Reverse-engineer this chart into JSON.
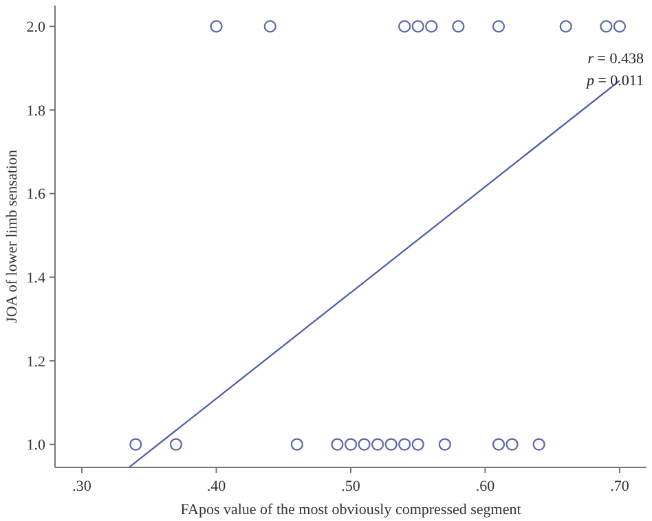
{
  "chart_data": {
    "type": "scatter",
    "xlabel": "FApos value of the most obviously compressed segment",
    "ylabel": "JOA of lower limb sensation",
    "xlim": [
      0.28,
      0.72
    ],
    "ylim": [
      0.945,
      2.05
    ],
    "xticks": [
      {
        "value": 0.3,
        "label": ".30"
      },
      {
        "value": 0.4,
        "label": ".40"
      },
      {
        "value": 0.5,
        "label": ".50"
      },
      {
        "value": 0.6,
        "label": ".60"
      },
      {
        "value": 0.7,
        "label": ".70"
      }
    ],
    "yticks": [
      {
        "value": 1.0,
        "label": "1.0"
      },
      {
        "value": 1.2,
        "label": "1.2"
      },
      {
        "value": 1.4,
        "label": "1.4"
      },
      {
        "value": 1.6,
        "label": "1.6"
      },
      {
        "value": 1.8,
        "label": "1.8"
      },
      {
        "value": 2.0,
        "label": "2.0"
      }
    ],
    "grid": false,
    "marker": "circle",
    "series": [
      {
        "color": "#5a66a8",
        "x": [
          0.34,
          0.37,
          0.46,
          0.49,
          0.5,
          0.51,
          0.52,
          0.53,
          0.54,
          0.55,
          0.57,
          0.61,
          0.62,
          0.64,
          0.4,
          0.44,
          0.54,
          0.55,
          0.56,
          0.58,
          0.61,
          0.66,
          0.69,
          0.7
        ],
        "values": [
          1,
          1,
          1,
          1,
          1,
          1,
          1,
          1,
          1,
          1,
          1,
          1,
          1,
          1,
          2,
          2,
          2,
          2,
          2,
          2,
          2,
          2,
          2,
          2
        ]
      },
      {
        "type": "line",
        "color": "#4a5aab",
        "marker": "none",
        "x": [
          0.335,
          0.7
        ],
        "values": [
          0.945,
          1.87
        ]
      }
    ],
    "annotations": [
      "r = 0.438",
      "p = 0.011"
    ]
  }
}
